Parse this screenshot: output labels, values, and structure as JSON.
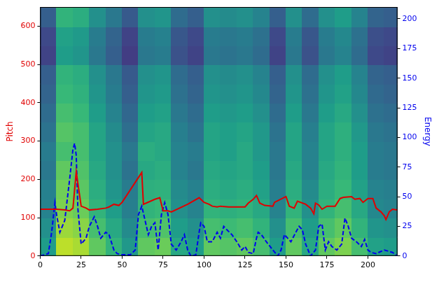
{
  "chart_data": {
    "type": "line",
    "y_label": "Pitch",
    "y2_label": "Energy",
    "xlim": [
      0,
      218
    ],
    "xticks": [
      0,
      25,
      50,
      75,
      100,
      125,
      150,
      175,
      200
    ],
    "ylim": [
      0,
      650
    ],
    "yticks": [
      0,
      100,
      200,
      300,
      400,
      500,
      600
    ],
    "y2lim": [
      0,
      210
    ],
    "y2ticks": [
      0,
      25,
      50,
      75,
      100,
      125,
      150,
      175,
      200
    ],
    "grid": false,
    "series": [
      {
        "name": "Pitch",
        "color": "#e00000",
        "line_style": "solid",
        "axis": "y",
        "x": [
          0,
          5,
          10,
          15,
          18,
          20,
          22,
          25,
          28,
          30,
          35,
          40,
          42,
          45,
          48,
          50,
          62,
          63,
          70,
          73,
          75,
          78,
          80,
          90,
          97,
          100,
          103,
          105,
          108,
          110,
          115,
          120,
          125,
          127,
          130,
          132,
          134,
          137,
          142,
          143,
          150,
          152,
          155,
          157,
          162,
          165,
          167,
          168,
          170,
          172,
          175,
          180,
          183,
          185,
          190,
          192,
          195,
          197,
          200,
          203,
          205,
          208,
          210,
          211,
          213,
          215,
          218
        ],
        "values": [
          122,
          122,
          122,
          120,
          118,
          125,
          220,
          130,
          125,
          120,
          122,
          125,
          128,
          135,
          132,
          140,
          218,
          135,
          148,
          152,
          118,
          118,
          115,
          135,
          152,
          140,
          135,
          130,
          128,
          130,
          128,
          128,
          128,
          138,
          148,
          158,
          138,
          132,
          130,
          140,
          155,
          130,
          125,
          143,
          135,
          125,
          110,
          138,
          133,
          122,
          130,
          130,
          150,
          153,
          155,
          148,
          150,
          140,
          150,
          150,
          125,
          115,
          105,
          95,
          115,
          122,
          120
        ]
      },
      {
        "name": "Energy",
        "color": "#0000ee",
        "line_style": "dashed",
        "axis": "y2",
        "x": [
          0,
          5,
          7,
          9,
          10,
          12,
          15,
          18,
          20,
          21,
          22,
          23,
          25,
          28,
          30,
          33,
          35,
          37,
          40,
          42,
          45,
          47,
          50,
          55,
          58,
          60,
          62,
          64,
          66,
          68,
          70,
          72,
          74,
          76,
          78,
          80,
          83,
          86,
          88,
          90,
          92,
          95,
          97,
          98,
          100,
          102,
          105,
          108,
          110,
          112,
          114,
          117,
          120,
          123,
          125,
          127,
          130,
          132,
          133,
          135,
          138,
          142,
          145,
          147,
          149,
          151,
          153,
          156,
          158,
          160,
          162,
          165,
          168,
          170,
          172,
          174,
          176,
          178,
          181,
          184,
          186,
          188,
          190,
          193,
          196,
          198,
          200,
          202,
          205,
          210,
          215,
          218
        ],
        "values": [
          0,
          2,
          20,
          45,
          35,
          20,
          30,
          65,
          90,
          95,
          85,
          40,
          10,
          15,
          25,
          33,
          25,
          15,
          20,
          18,
          5,
          2,
          1,
          1,
          5,
          35,
          42,
          30,
          18,
          25,
          28,
          5,
          35,
          45,
          35,
          10,
          5,
          12,
          18,
          5,
          0,
          1,
          20,
          28,
          25,
          12,
          12,
          20,
          15,
          25,
          22,
          18,
          12,
          5,
          8,
          3,
          2,
          15,
          20,
          18,
          12,
          5,
          0,
          5,
          18,
          15,
          12,
          20,
          25,
          22,
          10,
          0,
          5,
          25,
          27,
          5,
          12,
          8,
          5,
          10,
          32,
          25,
          15,
          12,
          8,
          14,
          5,
          3,
          2,
          5,
          3,
          0
        ]
      }
    ],
    "spectrogram": {
      "x": [
        0,
        10,
        20,
        30,
        40,
        50,
        60,
        70,
        80,
        90,
        100,
        110,
        120,
        130,
        140,
        150,
        160,
        170,
        180,
        190,
        200,
        210
      ],
      "y": [
        0,
        50,
        100,
        150,
        200,
        250,
        300,
        350,
        400,
        450,
        500,
        550,
        600
      ],
      "cells": [
        [
          0.55,
          0.9,
          0.87,
          0.75,
          0.65,
          0.53,
          0.75,
          0.77,
          0.6,
          0.55,
          0.75,
          0.73,
          0.75,
          0.7,
          0.55,
          0.75,
          0.6,
          0.75,
          0.8,
          0.7,
          0.57,
          0.55
        ],
        [
          0.5,
          0.85,
          0.82,
          0.7,
          0.6,
          0.48,
          0.7,
          0.72,
          0.55,
          0.5,
          0.7,
          0.68,
          0.7,
          0.65,
          0.5,
          0.7,
          0.55,
          0.7,
          0.75,
          0.65,
          0.52,
          0.5
        ],
        [
          0.45,
          0.8,
          0.77,
          0.65,
          0.55,
          0.43,
          0.65,
          0.67,
          0.5,
          0.45,
          0.65,
          0.63,
          0.65,
          0.6,
          0.45,
          0.65,
          0.5,
          0.65,
          0.7,
          0.6,
          0.47,
          0.45
        ],
        [
          0.44,
          0.78,
          0.74,
          0.62,
          0.52,
          0.42,
          0.63,
          0.64,
          0.48,
          0.44,
          0.62,
          0.6,
          0.62,
          0.57,
          0.43,
          0.62,
          0.48,
          0.62,
          0.67,
          0.57,
          0.45,
          0.43
        ],
        [
          0.4,
          0.75,
          0.72,
          0.6,
          0.5,
          0.38,
          0.6,
          0.62,
          0.45,
          0.4,
          0.6,
          0.58,
          0.6,
          0.55,
          0.4,
          0.6,
          0.45,
          0.6,
          0.65,
          0.55,
          0.42,
          0.4
        ],
        [
          0.42,
          0.7,
          0.7,
          0.58,
          0.5,
          0.4,
          0.62,
          0.6,
          0.45,
          0.42,
          0.58,
          0.56,
          0.6,
          0.53,
          0.4,
          0.58,
          0.45,
          0.58,
          0.63,
          0.55,
          0.42,
          0.4
        ],
        [
          0.38,
          0.73,
          0.7,
          0.58,
          0.48,
          0.36,
          0.58,
          0.6,
          0.43,
          0.38,
          0.58,
          0.56,
          0.58,
          0.53,
          0.38,
          0.58,
          0.43,
          0.58,
          0.63,
          0.53,
          0.4,
          0.38
        ],
        [
          0.35,
          0.7,
          0.67,
          0.55,
          0.45,
          0.33,
          0.55,
          0.57,
          0.4,
          0.35,
          0.55,
          0.53,
          0.55,
          0.5,
          0.35,
          0.55,
          0.4,
          0.55,
          0.6,
          0.5,
          0.37,
          0.35
        ],
        [
          0.32,
          0.67,
          0.64,
          0.52,
          0.42,
          0.3,
          0.52,
          0.54,
          0.37,
          0.32,
          0.52,
          0.5,
          0.52,
          0.47,
          0.32,
          0.52,
          0.37,
          0.52,
          0.57,
          0.47,
          0.34,
          0.32
        ],
        [
          0.3,
          0.65,
          0.62,
          0.5,
          0.4,
          0.28,
          0.5,
          0.52,
          0.35,
          0.3,
          0.5,
          0.48,
          0.5,
          0.45,
          0.3,
          0.5,
          0.35,
          0.5,
          0.55,
          0.45,
          0.32,
          0.3
        ],
        [
          0.2,
          0.55,
          0.52,
          0.4,
          0.3,
          0.18,
          0.4,
          0.42,
          0.25,
          0.2,
          0.4,
          0.38,
          0.4,
          0.35,
          0.2,
          0.4,
          0.25,
          0.4,
          0.45,
          0.35,
          0.22,
          0.2
        ],
        [
          0.22,
          0.57,
          0.54,
          0.42,
          0.32,
          0.2,
          0.42,
          0.44,
          0.27,
          0.22,
          0.42,
          0.4,
          0.42,
          0.37,
          0.22,
          0.42,
          0.27,
          0.42,
          0.47,
          0.37,
          0.24,
          0.22
        ],
        [
          0.3,
          0.65,
          0.62,
          0.5,
          0.4,
          0.28,
          0.5,
          0.52,
          0.35,
          0.3,
          0.5,
          0.48,
          0.5,
          0.45,
          0.3,
          0.5,
          0.35,
          0.5,
          0.55,
          0.45,
          0.32,
          0.3
        ]
      ]
    }
  }
}
